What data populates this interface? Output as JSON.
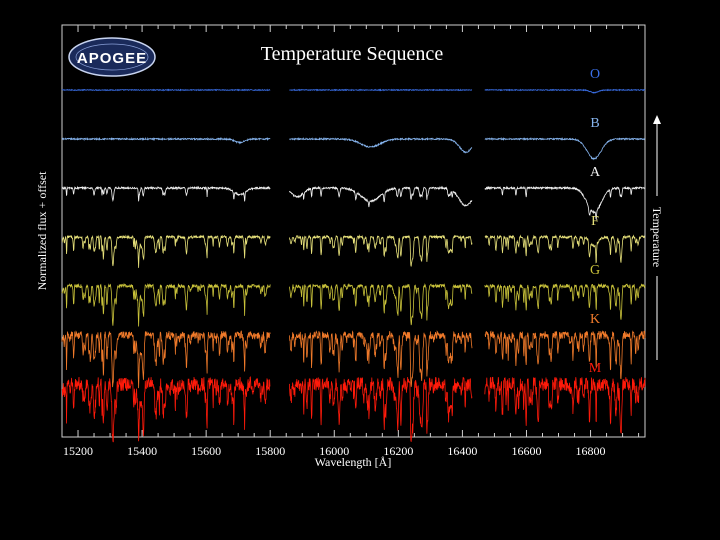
{
  "chart_data": {
    "type": "line",
    "title": "Temperature Sequence",
    "xlabel": "Wavelength [Å]",
    "ylabel": "Normalized flux + offset",
    "right_label": "Temperature",
    "logo_text": "APOGEE",
    "xlim": [
      15150,
      16970
    ],
    "x_ticks": [
      15200,
      15400,
      15600,
      15800,
      16000,
      16200,
      16400,
      16600,
      16800
    ],
    "x_tick_labels": [
      "15200",
      "15400",
      "15600",
      "15800",
      "16000",
      "16200",
      "16400",
      "16600",
      "16800"
    ],
    "detector_chips": [
      [
        15150,
        15800
      ],
      [
        15860,
        16430
      ],
      [
        16470,
        16970
      ]
    ],
    "grid": false,
    "series": [
      {
        "name": "O",
        "color": "#3a6fe8",
        "offset": 6,
        "noise": 0.01,
        "line_density": 0.05,
        "line_depth": 0.12,
        "broad_lines": [
          [
            16811,
            0.06,
            12
          ]
        ]
      },
      {
        "name": "B",
        "color": "#86b4ee",
        "offset": 5,
        "noise": 0.015,
        "line_density": 0.08,
        "line_depth": 0.12,
        "broad_lines": [
          [
            15705,
            0.08,
            15
          ],
          [
            16113,
            0.18,
            30
          ],
          [
            16411,
            0.3,
            20
          ],
          [
            16811,
            0.45,
            22
          ]
        ]
      },
      {
        "name": "A",
        "color": "#f2f2f2",
        "offset": 4,
        "noise": 0.02,
        "line_density": 0.12,
        "line_depth": 0.2,
        "broad_lines": [
          [
            15705,
            0.15,
            18
          ],
          [
            15885,
            0.2,
            18
          ],
          [
            16113,
            0.3,
            30
          ],
          [
            16411,
            0.4,
            22
          ],
          [
            16811,
            0.55,
            22
          ]
        ]
      },
      {
        "name": "F",
        "color": "#e6e07a",
        "offset": 3,
        "noise": 0.03,
        "line_density": 0.35,
        "line_depth": 0.45,
        "broad_lines": [
          [
            16811,
            0.2,
            12
          ]
        ]
      },
      {
        "name": "G",
        "color": "#c9c23a",
        "offset": 2,
        "noise": 0.04,
        "line_density": 0.5,
        "line_depth": 0.6,
        "broad_lines": []
      },
      {
        "name": "K",
        "color": "#f07a2a",
        "offset": 1,
        "noise": 0.09,
        "line_density": 0.85,
        "line_depth": 0.8,
        "broad_lines": []
      },
      {
        "name": "M",
        "color": "#ff1a0a",
        "offset": 0,
        "noise": 0.16,
        "line_density": 1.0,
        "line_depth": 0.9,
        "broad_lines": []
      }
    ]
  }
}
